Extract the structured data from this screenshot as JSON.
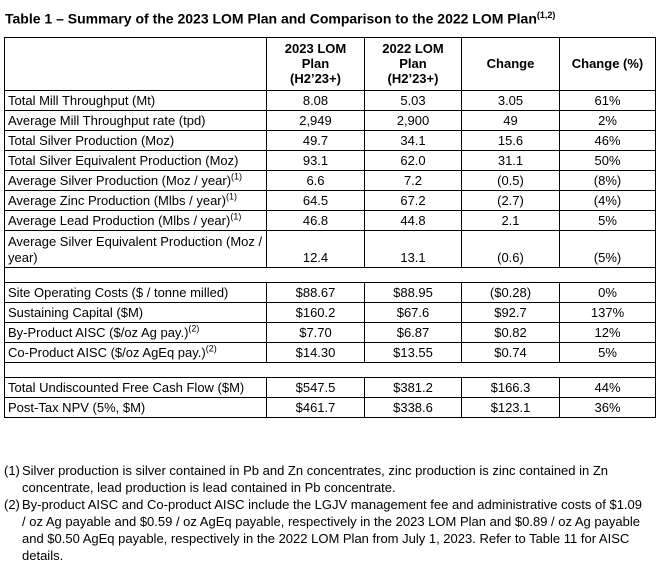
{
  "title": {
    "text": "Table 1 – Summary of the 2023 LOM Plan and Comparison to the 2022 LOM Plan",
    "sup": "(1,2)"
  },
  "table": {
    "headers": {
      "label": "",
      "plan2023": "2023 LOM\nPlan\n(H2’23+)",
      "plan2022": "2022 LOM\nPlan\n(H2’23+)",
      "change": "Change",
      "change_pct": "Change (%)"
    },
    "rows": [
      {
        "label": "Total Mill Throughput (Mt)",
        "sup": "",
        "v2023": "8.08",
        "v2022": "5.03",
        "change": "3.05",
        "change_pct": "61%"
      },
      {
        "label": "Average Mill Throughput rate (tpd)",
        "sup": "",
        "v2023": "2,949",
        "v2022": "2,900",
        "change": "49",
        "change_pct": "2%"
      },
      {
        "label": "Total Silver Production (Moz)",
        "sup": "",
        "v2023": "49.7",
        "v2022": "34.1",
        "change": "15.6",
        "change_pct": "46%"
      },
      {
        "label": "Total Silver Equivalent Production (Moz)",
        "sup": "",
        "v2023": "93.1",
        "v2022": "62.0",
        "change": "31.1",
        "change_pct": "50%"
      },
      {
        "label": "Average Silver Production (Moz / year)",
        "sup": "(1)",
        "v2023": "6.6",
        "v2022": "7.2",
        "change": "(0.5)",
        "change_pct": "(8%)"
      },
      {
        "label": "Average Zinc Production (Mlbs / year)",
        "sup": "(1)",
        "v2023": "64.5",
        "v2022": "67.2",
        "change": "(2.7)",
        "change_pct": "(4%)"
      },
      {
        "label": "Average Lead Production (Mlbs / year)",
        "sup": "(1)",
        "v2023": "46.8",
        "v2022": "44.8",
        "change": "2.1",
        "change_pct": "5%"
      },
      {
        "label": "Average Silver Equivalent Production (Moz / year)",
        "sup": "",
        "v2023": "12.4",
        "v2022": "13.1",
        "change": "(0.6)",
        "change_pct": "(5%)"
      },
      {
        "label": "Site Operating Costs ($ / tonne milled)",
        "sup": "",
        "v2023": "$88.67",
        "v2022": "$88.95",
        "change": "($0.28)",
        "change_pct": "0%"
      },
      {
        "label": "Sustaining Capital ($M)",
        "sup": "",
        "v2023": "$160.2",
        "v2022": "$67.6",
        "change": "$92.7",
        "change_pct": "137%"
      },
      {
        "label": "By-Product AISC ($/oz Ag pay.)",
        "sup": "(2)",
        "v2023": "$7.70",
        "v2022": "$6.87",
        "change": "$0.82",
        "change_pct": "12%"
      },
      {
        "label": "Co-Product AISC ($/oz AgEq pay.)",
        "sup": "(2)",
        "v2023": "$14.30",
        "v2022": "$13.55",
        "change": "$0.74",
        "change_pct": "5%"
      },
      {
        "label": "Total Undiscounted Free Cash Flow ($M)",
        "sup": "",
        "v2023": "$547.5",
        "v2022": "$381.2",
        "change": "$166.3",
        "change_pct": "44%"
      },
      {
        "label": "Post-Tax NPV (5%, $M)",
        "sup": "",
        "v2023": "$461.7",
        "v2022": "$338.6",
        "change": "$123.1",
        "change_pct": "36%"
      }
    ]
  },
  "footnotes": [
    {
      "marker": "(1)",
      "text": "Silver production is silver contained in Pb and Zn concentrates, zinc production is zinc contained in Zn concentrate, lead production is lead contained in Pb concentrate."
    },
    {
      "marker": "(2)",
      "text": "By-product AISC and Co-product AISC include the LGJV management fee and administrative costs of $1.09 / oz Ag payable and $0.59 / oz AgEq payable, respectively in the 2023 LOM Plan and $0.89 / oz Ag payable and $0.50 AgEq payable, respectively in the 2022 LOM Plan from July 1, 2023. Refer to Table 11 for AISC details."
    }
  ]
}
